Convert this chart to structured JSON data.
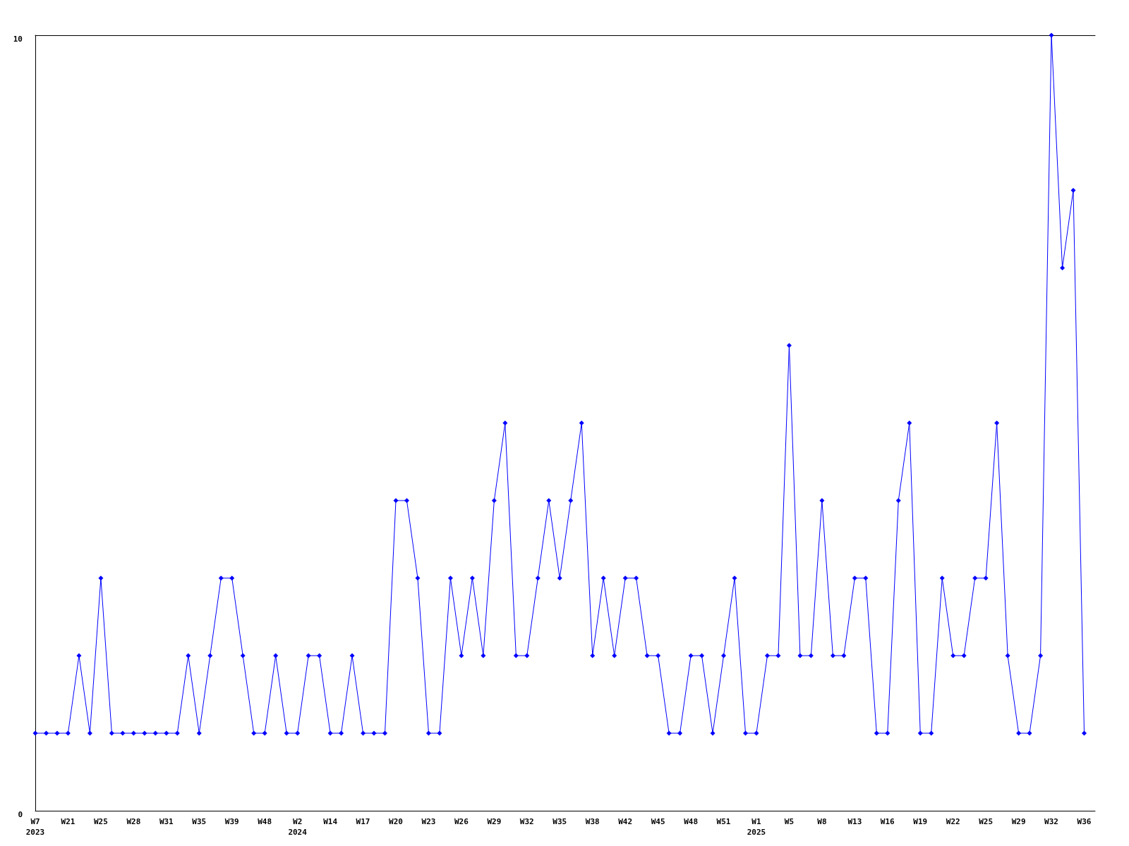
{
  "chart_data": {
    "type": "line",
    "categories": [
      "W7\n2023",
      null,
      null,
      "W21",
      null,
      null,
      "W25",
      null,
      null,
      "W28",
      null,
      null,
      "W31",
      null,
      null,
      "W35",
      null,
      null,
      "W39",
      null,
      null,
      "W48",
      null,
      null,
      "W2\n2024",
      null,
      null,
      "W14",
      null,
      null,
      "W17",
      null,
      null,
      "W20",
      null,
      null,
      "W23",
      null,
      null,
      "W26",
      null,
      null,
      "W29",
      null,
      null,
      "W32",
      null,
      null,
      "W35",
      null,
      null,
      "W38",
      null,
      null,
      "W42",
      null,
      null,
      "W45",
      null,
      null,
      "W48",
      null,
      null,
      "W51",
      null,
      null,
      "W1\n2025",
      null,
      null,
      "W5",
      null,
      null,
      "W8",
      null,
      null,
      "W13",
      null,
      null,
      "W16",
      null,
      null,
      "W19",
      null,
      null,
      "W22",
      null,
      null,
      "W25",
      null,
      null,
      "W29",
      null,
      null,
      "W32",
      null,
      null,
      "W36",
      null
    ],
    "series": [
      {
        "color": "#0000ff",
        "values": [
          1,
          1,
          1,
          1,
          2,
          1,
          3,
          1,
          1,
          1,
          1,
          1,
          1,
          1,
          2,
          1,
          2,
          3,
          3,
          2,
          1,
          1,
          2,
          1,
          1,
          2,
          2,
          1,
          1,
          2,
          1,
          1,
          1,
          4,
          4,
          3,
          1,
          1,
          3,
          2,
          3,
          2,
          4,
          5,
          2,
          2,
          3,
          4,
          3,
          4,
          5,
          2,
          3,
          2,
          3,
          3,
          2,
          2,
          1,
          1,
          2,
          2,
          1,
          2,
          3,
          1,
          1,
          2,
          2,
          6,
          2,
          2,
          4,
          2,
          2,
          3,
          3,
          1,
          1,
          4,
          5,
          1,
          1,
          3,
          2,
          2,
          3,
          3,
          5,
          2,
          1,
          1,
          2,
          10,
          7,
          8,
          1,
          null
        ]
      }
    ],
    "ylim": [
      0,
      10
    ],
    "yticks": [
      0,
      10
    ],
    "grid": false,
    "marker": "diamond",
    "line_style": "solid"
  }
}
